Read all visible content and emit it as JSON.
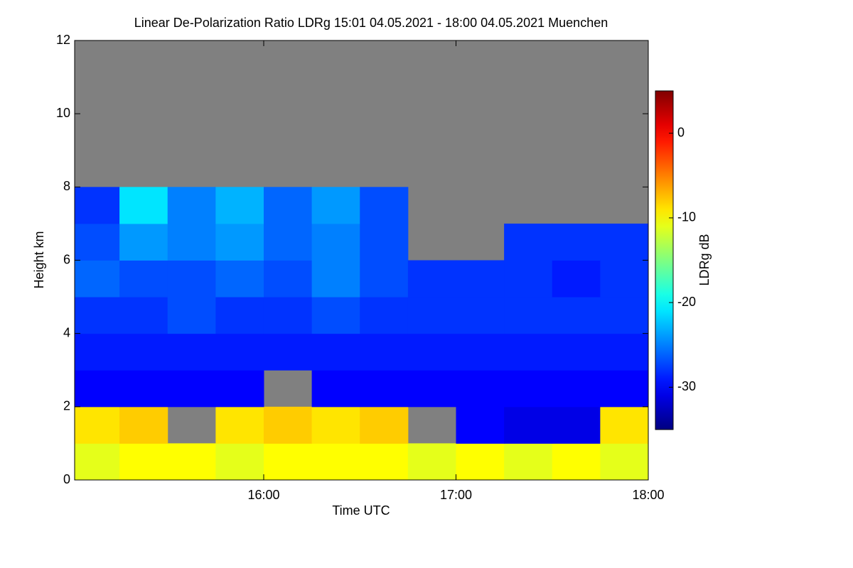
{
  "chart_data": {
    "type": "heatmap",
    "title": "Linear De-Polarization Ratio LDRg   15:01 04.05.2021 - 18:00 04.05.2021 Muenchen",
    "x_label": "Time UTC",
    "y_label": "Height km",
    "colorbar_label": "LDRg dB",
    "colormap": "jet",
    "missing_color": "#808080",
    "xlim": [
      15.0167,
      18.0
    ],
    "xticks": [
      {
        "value": 16,
        "label": "16:00"
      },
      {
        "value": 17,
        "label": "17:00"
      },
      {
        "value": 18,
        "label": "18:00"
      }
    ],
    "ylim": [
      0,
      12
    ],
    "yticks": [
      0,
      2,
      4,
      6,
      8,
      10,
      12
    ],
    "zlim": [
      -35,
      5
    ],
    "zticks": [
      -30,
      -20,
      -10,
      0
    ],
    "x_bins": [
      15.0167,
      15.25,
      15.5,
      15.75,
      16,
      16.25,
      16.5,
      16.75,
      17,
      17.25,
      17.5,
      17.75,
      18
    ],
    "y_bins": [
      0,
      1,
      2,
      3,
      4,
      5,
      6,
      7,
      8,
      9,
      10,
      11,
      12
    ],
    "values": [
      [
        -11,
        -10,
        -10,
        -11,
        -10,
        -10,
        -10,
        -11,
        -10,
        -11,
        -10,
        -11
      ],
      [
        -9,
        -8,
        null,
        -9,
        -8,
        -9,
        -8,
        null,
        -30,
        -31,
        -31,
        -9
      ],
      [
        -30,
        -30,
        -30,
        -30,
        null,
        -30,
        -30,
        -30,
        -30,
        -30,
        -30,
        -30
      ],
      [
        -29,
        -29,
        -29,
        -29,
        -29,
        -29,
        -29,
        -29,
        -29,
        -29,
        -29,
        -29
      ],
      [
        -28,
        -28,
        -27,
        -28,
        -28,
        -27,
        -28,
        -28,
        -28,
        -28,
        -28,
        -28
      ],
      [
        -26,
        -27,
        -27,
        -26,
        -27,
        -25,
        -27,
        -28,
        -28,
        -28,
        -29,
        -28
      ],
      [
        -27,
        -24,
        -25,
        -24,
        -26,
        -25,
        -27,
        null,
        null,
        -28,
        -28,
        -28
      ],
      [
        -28,
        -21,
        -25,
        -23,
        -26,
        -24,
        -27,
        null,
        null,
        null,
        null,
        null
      ],
      [
        null,
        null,
        null,
        null,
        null,
        null,
        null,
        null,
        null,
        null,
        null,
        null
      ],
      [
        null,
        null,
        null,
        null,
        null,
        null,
        null,
        null,
        null,
        null,
        null,
        null
      ],
      [
        null,
        null,
        null,
        null,
        null,
        null,
        null,
        null,
        null,
        null,
        null,
        null
      ],
      [
        null,
        null,
        null,
        null,
        null,
        null,
        null,
        null,
        null,
        null,
        null,
        null
      ]
    ]
  }
}
